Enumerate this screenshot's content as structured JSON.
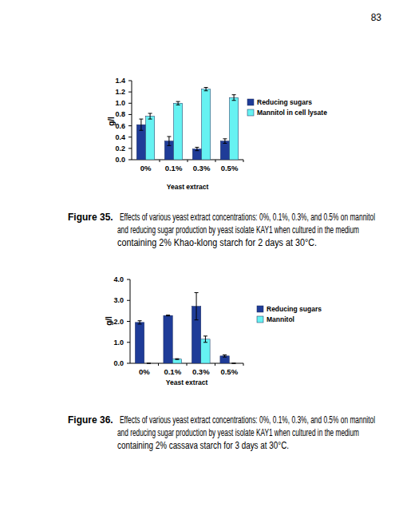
{
  "page_number": "83",
  "chart_data": [
    {
      "type": "bar",
      "y_label": "g/l",
      "x_label": "Yeast extract",
      "categories": [
        "0%",
        "0.1%",
        "0.3%",
        "0.5%"
      ],
      "series": [
        {
          "name": "Reducing sugars",
          "color": "#1f3c98",
          "values": [
            0.62,
            0.33,
            0.19,
            0.33
          ],
          "errors": [
            0.1,
            0.08,
            0.03,
            0.04
          ]
        },
        {
          "name": "Mannitol in cell lysate",
          "color": "#66f2f2",
          "values": [
            0.77,
            1.0,
            1.25,
            1.1
          ],
          "errors": [
            0.05,
            0.03,
            0.03,
            0.05
          ]
        }
      ],
      "ylim": [
        0,
        1.4
      ],
      "yticks": [
        {
          "value": 0,
          "label": "0.0"
        },
        0.2,
        0.4,
        0.6,
        0.8,
        {
          "value": 1,
          "label": "1.0"
        },
        1.2,
        1.4
      ],
      "legend": "right",
      "caption": {
        "label": "Figure 35.",
        "lines": [
          "Effects of various yeast extract concentrations: 0%, 0.1%, 0.3%, and 0.5% on mannitol",
          "and reducing sugar production by yeast isolate KAY1 when cultured in the medium",
          "containing 2% Khao-klong starch for 2 days at 30°C."
        ]
      }
    },
    {
      "type": "bar",
      "y_label": "g/l",
      "x_label": "Yeast extract",
      "categories": [
        "0%",
        "0.1%",
        "0.3%",
        "0.5%"
      ],
      "series": [
        {
          "name": "Reducing sugars",
          "color": "#1f3c98",
          "values": [
            1.95,
            2.28,
            2.72,
            0.35
          ],
          "errors": [
            0.08,
            0.02,
            0.65,
            0.05
          ]
        },
        {
          "name": "Mannitol",
          "color": "#66f2f2",
          "values": [
            0,
            0.2,
            1.15,
            0
          ],
          "errors": [
            0,
            0.02,
            0.15,
            0
          ]
        }
      ],
      "ylim": [
        0,
        4
      ],
      "yticks": [
        {
          "value": 0,
          "label": "0.0"
        },
        {
          "value": 1,
          "label": "1.0"
        },
        {
          "value": 2,
          "label": "2.0"
        },
        {
          "value": 3,
          "label": "3.0"
        },
        {
          "value": 4,
          "label": "4.0"
        }
      ],
      "legend": "right",
      "caption": {
        "label": "Figure 36.",
        "lines": [
          "Effects of various yeast extract concentrations: 0%, 0.1%, 0.3%, and 0.5% on mannitol",
          "and reducing sugar production by yeast isolate KAY1 when cultured in the medium",
          "containing 2% cassava starch for 3 days at 30°C."
        ]
      }
    }
  ]
}
